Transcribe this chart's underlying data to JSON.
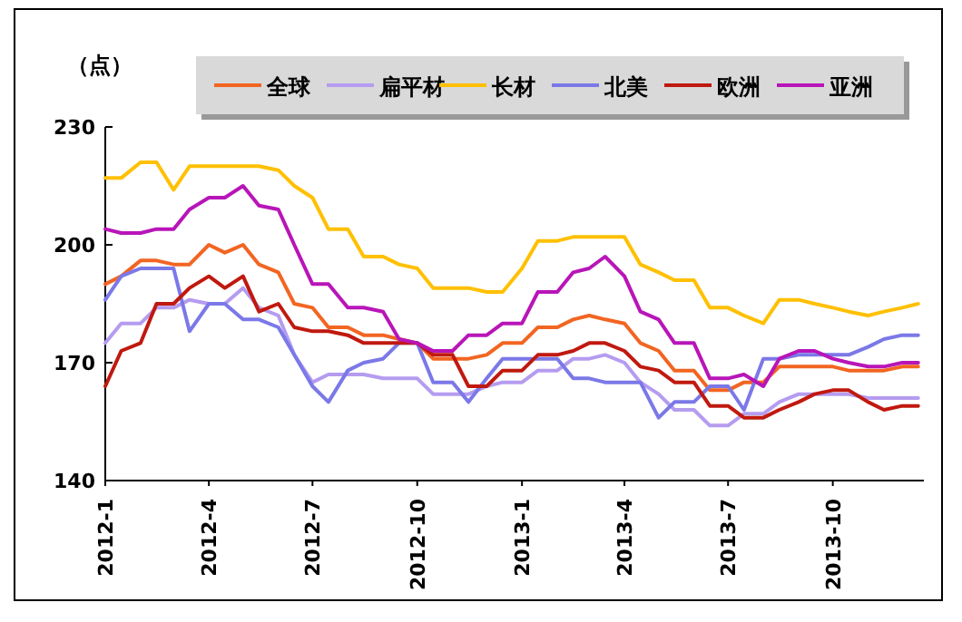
{
  "chart_data": {
    "type": "line",
    "ylabel": "（点）",
    "legend": "top",
    "grid": false,
    "x": [
      "2012-01-01",
      "2012-01-15",
      "2012-02-01",
      "2012-02-15",
      "2012-03-01",
      "2012-03-15",
      "2012-04-01",
      "2012-04-15",
      "2012-05-01",
      "2012-05-15",
      "2012-06-01",
      "2012-06-15",
      "2012-07-01",
      "2012-07-15",
      "2012-08-01",
      "2012-08-15",
      "2012-09-01",
      "2012-09-15",
      "2012-10-01",
      "2012-10-15",
      "2012-11-01",
      "2012-11-15",
      "2012-12-01",
      "2012-12-15",
      "2013-01-01",
      "2013-01-15",
      "2013-02-01",
      "2013-02-15",
      "2013-03-01",
      "2013-03-15",
      "2013-04-01",
      "2013-04-15",
      "2013-05-01",
      "2013-05-15",
      "2013-06-01",
      "2013-06-15",
      "2013-07-01",
      "2013-07-15",
      "2013-08-01",
      "2013-08-15",
      "2013-09-01",
      "2013-09-15",
      "2013-10-01",
      "2013-10-15",
      "2013-11-01",
      "2013-11-15",
      "2013-12-01",
      "2013-12-15"
    ],
    "xlim": [
      "2012-01-01",
      "2013-12-20"
    ],
    "xticks": [
      {
        "value": "2012-01",
        "label": "2012-1"
      },
      {
        "value": "2012-04",
        "label": "2012-4"
      },
      {
        "value": "2012-07",
        "label": "2012-7"
      },
      {
        "value": "2012-10",
        "label": "2012-10"
      },
      {
        "value": "2013-01",
        "label": "2013-1"
      },
      {
        "value": "2013-04",
        "label": "2013-4"
      },
      {
        "value": "2013-07",
        "label": "2013-7"
      },
      {
        "value": "2013-10",
        "label": "2013-10"
      }
    ],
    "ylim": [
      140,
      230
    ],
    "yticks": [
      140,
      170,
      200,
      230
    ],
    "series": [
      {
        "name": "全球",
        "color": "#f26522",
        "values": [
          190,
          192,
          196,
          196,
          195,
          195,
          200,
          198,
          200,
          195,
          193,
          185,
          184,
          179,
          179,
          177,
          177,
          176,
          175,
          171,
          171,
          171,
          172,
          175,
          175,
          179,
          179,
          181,
          182,
          181,
          180,
          175,
          173,
          168,
          168,
          163,
          163,
          165,
          165,
          169,
          169,
          169,
          169,
          168,
          168,
          168,
          169,
          169
        ]
      },
      {
        "name": "扁平材",
        "color": "#b59cf0",
        "values": [
          175,
          180,
          180,
          184,
          184,
          186,
          185,
          185,
          189,
          184,
          182,
          172,
          165,
          167,
          167,
          167,
          166,
          166,
          166,
          162,
          162,
          162,
          164,
          165,
          165,
          168,
          168,
          171,
          171,
          172,
          170,
          165,
          162,
          158,
          158,
          154,
          154,
          157,
          157,
          160,
          162,
          162,
          162,
          162,
          161,
          161,
          161,
          161
        ]
      },
      {
        "name": "长材",
        "color": "#ffc000",
        "values": [
          217,
          217,
          221,
          221,
          214,
          220,
          220,
          220,
          220,
          220,
          219,
          215,
          212,
          204,
          204,
          197,
          197,
          195,
          194,
          189,
          189,
          189,
          188,
          188,
          194,
          201,
          201,
          202,
          202,
          202,
          202,
          195,
          193,
          191,
          191,
          184,
          184,
          182,
          180,
          186,
          186,
          185,
          184,
          183,
          182,
          183,
          184,
          185
        ]
      },
      {
        "name": "北美",
        "color": "#7b78e8",
        "values": [
          186,
          192,
          194,
          194,
          194,
          178,
          185,
          185,
          181,
          181,
          179,
          172,
          164,
          160,
          168,
          170,
          171,
          175,
          175,
          165,
          165,
          160,
          166,
          171,
          171,
          171,
          171,
          166,
          166,
          165,
          165,
          165,
          156,
          160,
          160,
          164,
          164,
          158,
          171,
          171,
          172,
          172,
          172,
          172,
          174,
          176,
          177,
          177
        ]
      },
      {
        "name": "欧洲",
        "color": "#c0190f",
        "values": [
          164,
          173,
          175,
          185,
          185,
          189,
          192,
          189,
          192,
          183,
          185,
          179,
          178,
          178,
          177,
          175,
          175,
          175,
          175,
          172,
          172,
          164,
          164,
          168,
          168,
          172,
          172,
          173,
          175,
          175,
          173,
          169,
          168,
          165,
          165,
          159,
          159,
          156,
          156,
          158,
          160,
          162,
          163,
          163,
          160,
          158,
          159,
          159
        ]
      },
      {
        "name": "亚洲",
        "color": "#b815b8",
        "values": [
          204,
          203,
          203,
          204,
          204,
          209,
          212,
          212,
          215,
          210,
          209,
          200,
          190,
          190,
          184,
          184,
          183,
          176,
          175,
          173,
          173,
          177,
          177,
          180,
          180,
          188,
          188,
          193,
          194,
          197,
          192,
          183,
          181,
          175,
          175,
          166,
          166,
          167,
          164,
          171,
          173,
          173,
          171,
          170,
          169,
          169,
          170,
          170
        ]
      }
    ]
  }
}
